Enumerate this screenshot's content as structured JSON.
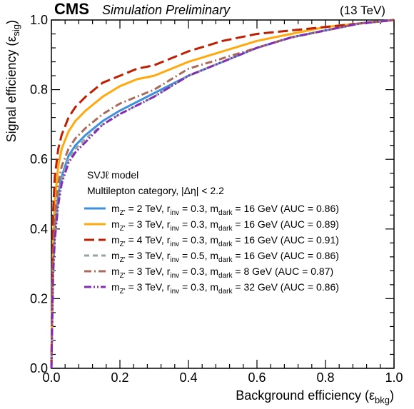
{
  "header": {
    "experiment": "CMS",
    "status": "Simulation Preliminary",
    "energy": "(13 TeV)"
  },
  "legend_header": {
    "model": "SVJℓ model",
    "category": "Multilepton category, |Δη| < 2.2"
  },
  "chart_data": {
    "type": "line",
    "xlabel": "Background efficiency (ε_bkg)",
    "ylabel": "Signal efficiency (ε_sig)",
    "xlim": [
      0.0,
      1.0
    ],
    "ylim": [
      0.0,
      1.0
    ],
    "x_ticks": [
      "0.0",
      "0.2",
      "0.4",
      "0.6",
      "0.8",
      "1.0"
    ],
    "y_ticks": [
      "0.0",
      "0.2",
      "0.4",
      "0.6",
      "0.8",
      "1.0"
    ],
    "grid": false,
    "legend_position": "center-right",
    "series": [
      {
        "name": "mZ' = 2 TeV, rinv = 0.3, mdark = 16 GeV (AUC = 0.86)",
        "label": {
          "mzp": "2",
          "rinv": "0.3",
          "mdark": "16",
          "auc": "0.86"
        },
        "color": "#3f90da",
        "dash": "solid",
        "x": [
          0.0,
          0.005,
          0.01,
          0.02,
          0.03,
          0.05,
          0.07,
          0.1,
          0.15,
          0.2,
          0.3,
          0.4,
          0.5,
          0.6,
          0.7,
          0.8,
          0.9,
          1.0
        ],
        "y": [
          0.0,
          0.3,
          0.4,
          0.5,
          0.55,
          0.61,
          0.64,
          0.67,
          0.71,
          0.74,
          0.79,
          0.84,
          0.88,
          0.92,
          0.95,
          0.97,
          0.99,
          1.0
        ]
      },
      {
        "name": "mZ' = 3 TeV, rinv = 0.3, mdark = 16 GeV (AUC = 0.89)",
        "label": {
          "mzp": "3",
          "rinv": "0.3",
          "mdark": "16",
          "auc": "0.89"
        },
        "color": "#ffa90e",
        "dash": "solid",
        "x": [
          0.0,
          0.005,
          0.01,
          0.02,
          0.03,
          0.05,
          0.07,
          0.1,
          0.15,
          0.2,
          0.25,
          0.3,
          0.4,
          0.5,
          0.6,
          0.7,
          0.8,
          0.9,
          1.0
        ],
        "y": [
          0.0,
          0.38,
          0.48,
          0.58,
          0.63,
          0.68,
          0.71,
          0.74,
          0.78,
          0.81,
          0.83,
          0.84,
          0.88,
          0.91,
          0.94,
          0.96,
          0.98,
          0.99,
          1.0
        ]
      },
      {
        "name": "mZ' = 4 TeV, rinv = 0.3, mdark = 16 GeV (AUC = 0.91)",
        "label": {
          "mzp": "4",
          "rinv": "0.3",
          "mdark": "16",
          "auc": "0.91"
        },
        "color": "#bd1f01",
        "dash": "long",
        "x": [
          0.0,
          0.005,
          0.01,
          0.02,
          0.03,
          0.05,
          0.07,
          0.1,
          0.15,
          0.2,
          0.25,
          0.3,
          0.4,
          0.5,
          0.6,
          0.7,
          0.8,
          0.9,
          1.0
        ],
        "y": [
          0.0,
          0.45,
          0.55,
          0.63,
          0.67,
          0.72,
          0.75,
          0.78,
          0.82,
          0.84,
          0.86,
          0.87,
          0.91,
          0.94,
          0.96,
          0.97,
          0.98,
          0.99,
          1.0
        ]
      },
      {
        "name": "mZ' = 3 TeV, rinv = 0.5, mdark = 16 GeV (AUC = 0.86)",
        "label": {
          "mzp": "3",
          "rinv": "0.5",
          "mdark": "16",
          "auc": "0.86"
        },
        "color": "#94a4a2",
        "dash": "dash",
        "x": [
          0.0,
          0.005,
          0.01,
          0.02,
          0.03,
          0.05,
          0.07,
          0.1,
          0.15,
          0.2,
          0.3,
          0.4,
          0.5,
          0.6,
          0.7,
          0.8,
          0.9,
          1.0
        ],
        "y": [
          0.0,
          0.28,
          0.38,
          0.48,
          0.54,
          0.6,
          0.63,
          0.66,
          0.7,
          0.73,
          0.78,
          0.84,
          0.88,
          0.92,
          0.95,
          0.97,
          0.99,
          1.0
        ]
      },
      {
        "name": "mZ' = 3 TeV, rinv = 0.3, mdark = 8 GeV (AUC = 0.87)",
        "label": {
          "mzp": "3",
          "rinv": "0.3",
          "mdark": "8",
          "auc": "0.87"
        },
        "color": "#a96b59",
        "dash": "dashdot",
        "x": [
          0.0,
          0.005,
          0.01,
          0.02,
          0.03,
          0.05,
          0.07,
          0.1,
          0.15,
          0.2,
          0.3,
          0.4,
          0.5,
          0.6,
          0.7,
          0.8,
          0.9,
          1.0
        ],
        "y": [
          0.0,
          0.32,
          0.43,
          0.53,
          0.58,
          0.63,
          0.66,
          0.69,
          0.73,
          0.76,
          0.8,
          0.86,
          0.89,
          0.92,
          0.95,
          0.97,
          0.99,
          1.0
        ]
      },
      {
        "name": "mZ' = 3 TeV, rinv = 0.3, mdark = 32 GeV (AUC = 0.86)",
        "label": {
          "mzp": "3",
          "rinv": "0.3",
          "mdark": "32",
          "auc": "0.86"
        },
        "color": "#832db6",
        "dash": "dashdotdot",
        "x": [
          0.0,
          0.005,
          0.01,
          0.02,
          0.03,
          0.05,
          0.07,
          0.1,
          0.15,
          0.2,
          0.3,
          0.4,
          0.5,
          0.6,
          0.7,
          0.8,
          0.9,
          1.0
        ],
        "y": [
          0.0,
          0.27,
          0.37,
          0.47,
          0.53,
          0.59,
          0.62,
          0.65,
          0.7,
          0.73,
          0.78,
          0.84,
          0.88,
          0.92,
          0.95,
          0.97,
          0.99,
          1.0
        ]
      }
    ]
  }
}
